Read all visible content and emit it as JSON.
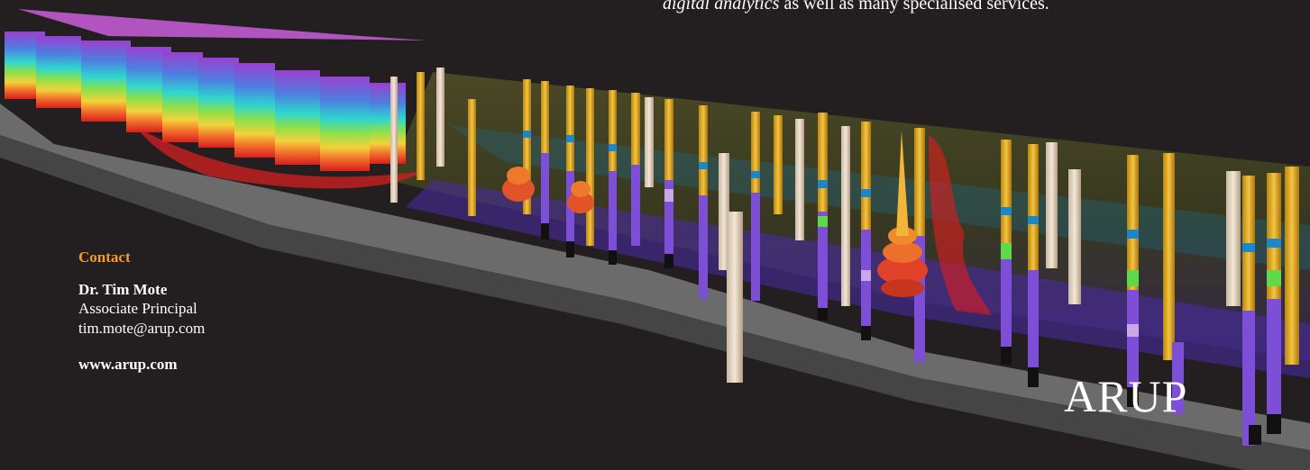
{
  "intro": {
    "emphasis": "digital analytics",
    "rest": " as well as many specialised services."
  },
  "contact": {
    "heading": "Contact",
    "name": "Dr. Tim Mote",
    "role": "Associate Principal",
    "email": "tim.mote@arup.com",
    "website": "www.arup.com"
  },
  "brand": {
    "logo_text": "ARUP"
  },
  "colors": {
    "background": "#231f20",
    "accent": "#f39a2b",
    "text": "#ffffff"
  }
}
